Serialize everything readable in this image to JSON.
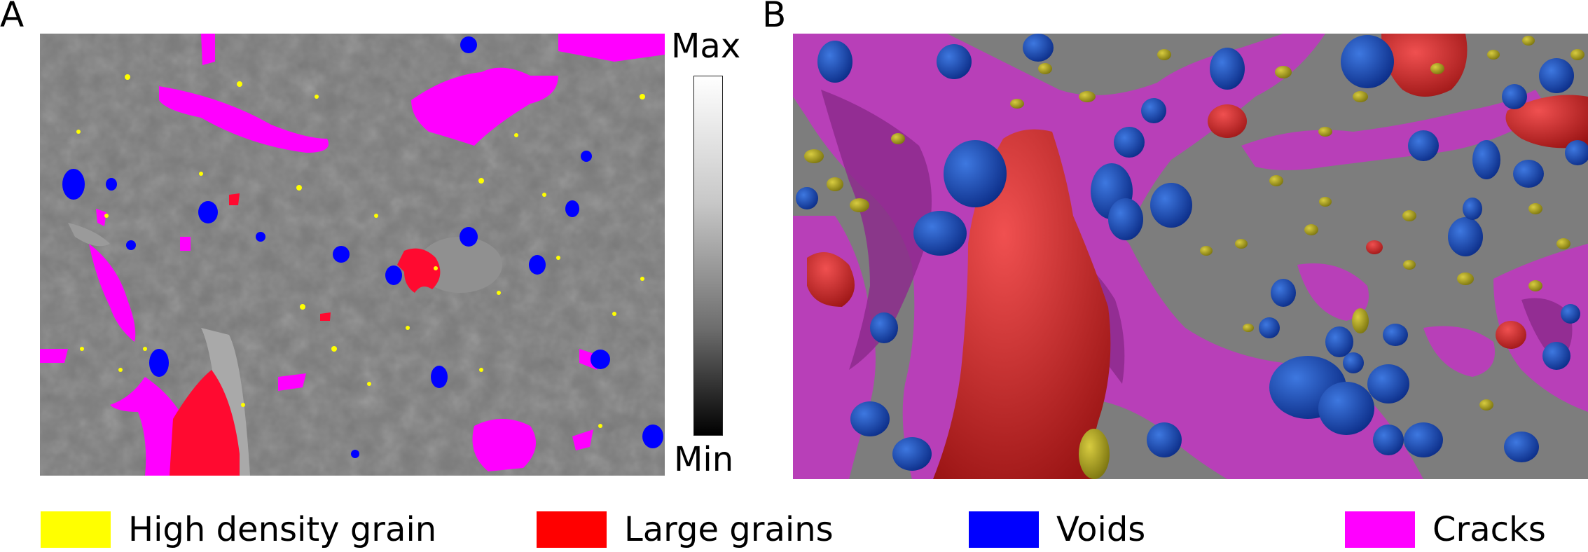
{
  "panels": {
    "a": {
      "letter": "A"
    },
    "b": {
      "letter": "B"
    }
  },
  "colorbar": {
    "max_label": "Max",
    "min_label": "Min"
  },
  "legend": [
    {
      "label": "High density grain",
      "color": "#ffff00"
    },
    {
      "label": "Large grains",
      "color": "#ff0000"
    },
    {
      "label": "Voids",
      "color": "#0000ff"
    },
    {
      "label": "Cracks",
      "color": "#ff00ff"
    }
  ],
  "colors": {
    "background_gray": "#7a7a7a",
    "render_gray": "#7d7d7d",
    "render_cracks": "#b83fb8",
    "render_grains": "#d02a2a",
    "render_voids": "#1848b0",
    "render_dense": "#a8a020"
  }
}
